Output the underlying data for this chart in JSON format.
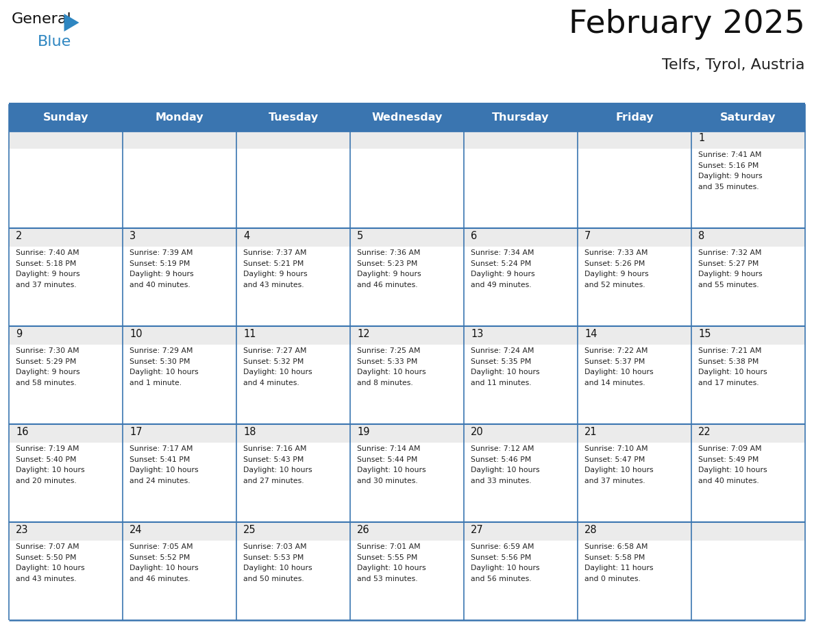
{
  "title": "February 2025",
  "subtitle": "Telfs, Tyrol, Austria",
  "days_of_week": [
    "Sunday",
    "Monday",
    "Tuesday",
    "Wednesday",
    "Thursday",
    "Friday",
    "Saturday"
  ],
  "header_bg": "#3A75B0",
  "header_text": "#FFFFFF",
  "cell_bg_light": "#EBEBEB",
  "cell_bg_white": "#FFFFFF",
  "border_color": "#3A75B0",
  "title_color": "#111111",
  "subtitle_color": "#222222",
  "cell_text_color": "#222222",
  "day_num_color": "#111111",
  "logo_color1": "#111111",
  "logo_color2": "#2E86C1",
  "logo_triangle_color": "#2E86C1",
  "calendar": [
    [
      null,
      null,
      null,
      null,
      null,
      null,
      {
        "day": 1,
        "sunrise": "7:41 AM",
        "sunset": "5:16 PM",
        "daylight": "9 hours\nand 35 minutes."
      }
    ],
    [
      {
        "day": 2,
        "sunrise": "7:40 AM",
        "sunset": "5:18 PM",
        "daylight": "9 hours\nand 37 minutes."
      },
      {
        "day": 3,
        "sunrise": "7:39 AM",
        "sunset": "5:19 PM",
        "daylight": "9 hours\nand 40 minutes."
      },
      {
        "day": 4,
        "sunrise": "7:37 AM",
        "sunset": "5:21 PM",
        "daylight": "9 hours\nand 43 minutes."
      },
      {
        "day": 5,
        "sunrise": "7:36 AM",
        "sunset": "5:23 PM",
        "daylight": "9 hours\nand 46 minutes."
      },
      {
        "day": 6,
        "sunrise": "7:34 AM",
        "sunset": "5:24 PM",
        "daylight": "9 hours\nand 49 minutes."
      },
      {
        "day": 7,
        "sunrise": "7:33 AM",
        "sunset": "5:26 PM",
        "daylight": "9 hours\nand 52 minutes."
      },
      {
        "day": 8,
        "sunrise": "7:32 AM",
        "sunset": "5:27 PM",
        "daylight": "9 hours\nand 55 minutes."
      }
    ],
    [
      {
        "day": 9,
        "sunrise": "7:30 AM",
        "sunset": "5:29 PM",
        "daylight": "9 hours\nand 58 minutes."
      },
      {
        "day": 10,
        "sunrise": "7:29 AM",
        "sunset": "5:30 PM",
        "daylight": "10 hours\nand 1 minute."
      },
      {
        "day": 11,
        "sunrise": "7:27 AM",
        "sunset": "5:32 PM",
        "daylight": "10 hours\nand 4 minutes."
      },
      {
        "day": 12,
        "sunrise": "7:25 AM",
        "sunset": "5:33 PM",
        "daylight": "10 hours\nand 8 minutes."
      },
      {
        "day": 13,
        "sunrise": "7:24 AM",
        "sunset": "5:35 PM",
        "daylight": "10 hours\nand 11 minutes."
      },
      {
        "day": 14,
        "sunrise": "7:22 AM",
        "sunset": "5:37 PM",
        "daylight": "10 hours\nand 14 minutes."
      },
      {
        "day": 15,
        "sunrise": "7:21 AM",
        "sunset": "5:38 PM",
        "daylight": "10 hours\nand 17 minutes."
      }
    ],
    [
      {
        "day": 16,
        "sunrise": "7:19 AM",
        "sunset": "5:40 PM",
        "daylight": "10 hours\nand 20 minutes."
      },
      {
        "day": 17,
        "sunrise": "7:17 AM",
        "sunset": "5:41 PM",
        "daylight": "10 hours\nand 24 minutes."
      },
      {
        "day": 18,
        "sunrise": "7:16 AM",
        "sunset": "5:43 PM",
        "daylight": "10 hours\nand 27 minutes."
      },
      {
        "day": 19,
        "sunrise": "7:14 AM",
        "sunset": "5:44 PM",
        "daylight": "10 hours\nand 30 minutes."
      },
      {
        "day": 20,
        "sunrise": "7:12 AM",
        "sunset": "5:46 PM",
        "daylight": "10 hours\nand 33 minutes."
      },
      {
        "day": 21,
        "sunrise": "7:10 AM",
        "sunset": "5:47 PM",
        "daylight": "10 hours\nand 37 minutes."
      },
      {
        "day": 22,
        "sunrise": "7:09 AM",
        "sunset": "5:49 PM",
        "daylight": "10 hours\nand 40 minutes."
      }
    ],
    [
      {
        "day": 23,
        "sunrise": "7:07 AM",
        "sunset": "5:50 PM",
        "daylight": "10 hours\nand 43 minutes."
      },
      {
        "day": 24,
        "sunrise": "7:05 AM",
        "sunset": "5:52 PM",
        "daylight": "10 hours\nand 46 minutes."
      },
      {
        "day": 25,
        "sunrise": "7:03 AM",
        "sunset": "5:53 PM",
        "daylight": "10 hours\nand 50 minutes."
      },
      {
        "day": 26,
        "sunrise": "7:01 AM",
        "sunset": "5:55 PM",
        "daylight": "10 hours\nand 53 minutes."
      },
      {
        "day": 27,
        "sunrise": "6:59 AM",
        "sunset": "5:56 PM",
        "daylight": "10 hours\nand 56 minutes."
      },
      {
        "day": 28,
        "sunrise": "6:58 AM",
        "sunset": "5:58 PM",
        "daylight": "11 hours\nand 0 minutes."
      },
      null
    ]
  ]
}
